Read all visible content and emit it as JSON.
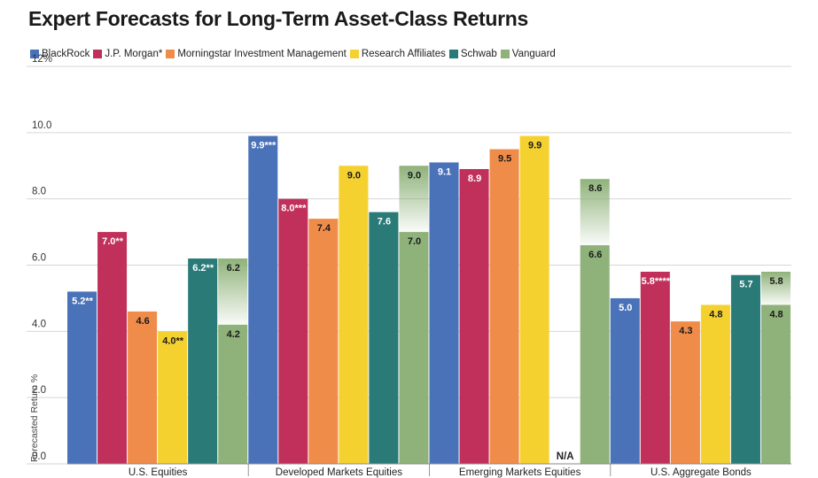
{
  "title": "Expert Forecasts for Long-Term Asset-Class Returns",
  "chart_data": {
    "type": "bar",
    "title": "Expert Forecasts for Long-Term Asset-Class Returns",
    "xlabel": "",
    "ylabel": "Forecasted Return %",
    "ylim": [
      0,
      12
    ],
    "yticks": [
      {
        "value": 0,
        "label": "0.0"
      },
      {
        "value": 2,
        "label": "2.0"
      },
      {
        "value": 4,
        "label": "4.0"
      },
      {
        "value": 6,
        "label": "6.0"
      },
      {
        "value": 8,
        "label": "8.0"
      },
      {
        "value": 10,
        "label": "10.0"
      },
      {
        "value": 12,
        "label": "12%"
      }
    ],
    "grid": true,
    "legend_position": "top-left",
    "categories": [
      "U.S. Equities",
      "Developed Markets Equities",
      "Emerging Markets Equities",
      "U.S. Aggregate Bonds"
    ],
    "series": [
      {
        "name": "BlackRock",
        "color": "#4a72b8",
        "values": [
          5.2,
          9.9,
          9.1,
          5.0
        ],
        "labels": [
          "5.2**",
          "9.9***",
          "9.1",
          "5.0"
        ]
      },
      {
        "name": "J.P. Morgan*",
        "color": "#c0305a",
        "values": [
          7.0,
          8.0,
          8.9,
          5.8
        ],
        "labels": [
          "7.0**",
          "8.0***",
          "8.9",
          "5.8****"
        ]
      },
      {
        "name": "Morningstar Investment Management",
        "color": "#f08c4a",
        "values": [
          4.6,
          7.4,
          9.5,
          4.3
        ],
        "labels": [
          "4.6",
          "7.4",
          "9.5",
          "4.3"
        ]
      },
      {
        "name": "Research Affiliates",
        "color": "#f5d130",
        "values": [
          4.0,
          9.0,
          9.9,
          4.8
        ],
        "labels": [
          "4.0**",
          "9.0",
          "9.9",
          "4.8"
        ]
      },
      {
        "name": "Schwab",
        "color": "#2a7a78",
        "values": [
          6.2,
          7.6,
          null,
          5.7
        ],
        "labels": [
          "6.2**",
          "7.6",
          "N/A",
          "5.7"
        ]
      },
      {
        "name": "Vanguard",
        "color": "#8fb27a",
        "values": [
          4.2,
          7.0,
          6.6,
          4.8
        ],
        "ranges_high": [
          6.2,
          9.0,
          8.6,
          5.8
        ],
        "labels": [
          "4.2",
          "7.0",
          "6.6",
          "4.8"
        ],
        "labels_high": [
          "6.2",
          "9.0",
          "8.6",
          "5.8"
        ]
      }
    ]
  }
}
